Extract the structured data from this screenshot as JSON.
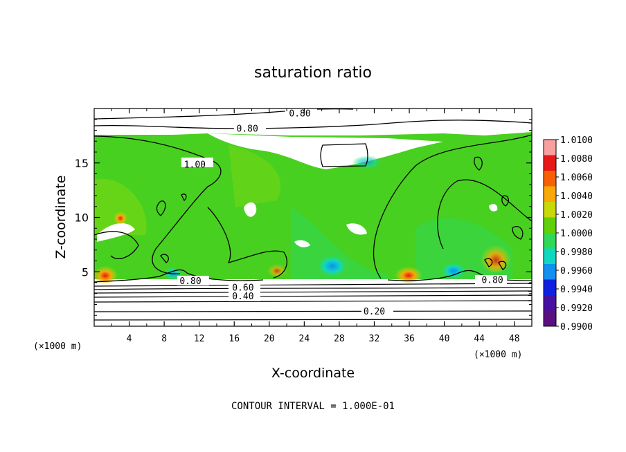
{
  "chart_data": {
    "type": "heatmap",
    "title": "saturation ratio",
    "xlabel": "X-coordinate",
    "ylabel": "Z-coordinate",
    "x_unit": "(×1000 m)",
    "z_unit": "(×1000 m)",
    "xlim": [
      0,
      50
    ],
    "ylim": [
      0,
      20
    ],
    "x_ticks": [
      "4",
      "8",
      "12",
      "16",
      "20",
      "24",
      "28",
      "32",
      "36",
      "40",
      "44",
      "48"
    ],
    "y_ticks": [
      "5",
      "10",
      "15"
    ],
    "contour_interval_text": "CONTOUR INTERVAL = 1.000E-01",
    "contour_labels": [
      {
        "text": "0.80",
        "x": 23.5,
        "z": 19.6
      },
      {
        "text": "0.80",
        "x": 17.5,
        "z": 18.2
      },
      {
        "text": "1.00",
        "x": 11.5,
        "z": 14.9
      },
      {
        "text": "0.80",
        "x": 11.0,
        "z": 4.2
      },
      {
        "text": "0.60",
        "x": 17.0,
        "z": 3.6
      },
      {
        "text": "0.40",
        "x": 17.0,
        "z": 2.8
      },
      {
        "text": "0.20",
        "x": 32.0,
        "z": 1.4
      },
      {
        "text": "0.80",
        "x": 45.5,
        "z": 4.3
      }
    ],
    "colorbar": {
      "labels": [
        "1.0100",
        "1.0080",
        "1.0060",
        "1.0040",
        "1.0020",
        "1.0000",
        "0.9980",
        "0.9960",
        "0.9940",
        "0.9920",
        "0.9900"
      ],
      "colors": [
        "#f8a0a0",
        "#e81818",
        "#f86008",
        "#f8a808",
        "#c8d808",
        "#60d008",
        "#30d858",
        "#10d8c0",
        "#1090f0",
        "#1020e0",
        "#4810a0",
        "#5a1080"
      ],
      "range": [
        0.99,
        1.01
      ]
    },
    "field_regions": {
      "saturated_layer_z": [
        4.5,
        17.5
      ],
      "dry_below_z": 4.5,
      "dominant_value": 1.0
    }
  }
}
